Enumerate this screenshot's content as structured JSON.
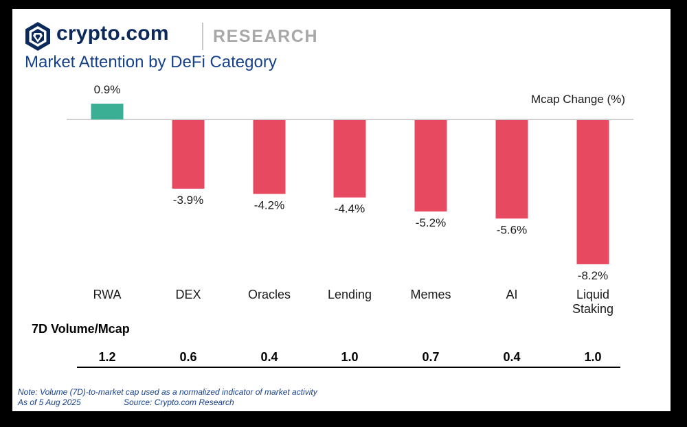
{
  "brand": {
    "name": "crypto.com",
    "division": "RESEARCH",
    "logo_icon": "crypto-com-lion-shield-icon"
  },
  "title": "Market Attention by DeFi Category",
  "chart_data": {
    "type": "bar",
    "categories": [
      "RWA",
      "DEX",
      "Oracles",
      "Lending",
      "Memes",
      "AI",
      "Liquid Staking"
    ],
    "category_labels": [
      [
        "RWA"
      ],
      [
        "DEX"
      ],
      [
        "Oracles"
      ],
      [
        "Lending"
      ],
      [
        "Memes"
      ],
      [
        "AI"
      ],
      [
        "Liquid",
        "Staking"
      ]
    ],
    "values": [
      0.9,
      -3.9,
      -4.2,
      -4.4,
      -5.2,
      -5.6,
      -8.2
    ],
    "value_labels": [
      "0.9%",
      "-3.9%",
      "-4.2%",
      "-4.4%",
      "-5.2%",
      "-5.6%",
      "-8.2%"
    ],
    "ylabel": "Mcap Change (%)",
    "ylim": [
      -8.2,
      0.9
    ],
    "grid": false,
    "colors": {
      "positive": "#3aaf94",
      "negative": "#e64960",
      "baseline": "#c0c0c0"
    },
    "secondary_table": {
      "label": "7D Volume/Mcap",
      "values": [
        "1.2",
        "0.6",
        "0.4",
        "1.0",
        "0.7",
        "0.4",
        "1.0"
      ]
    }
  },
  "notes": {
    "line1": "Note: Volume (7D)-to-market cap used as a normalized indicator of market activity",
    "line2": "As of 5 Aug 2025",
    "source": "Source: Crypto.com Research"
  },
  "colors": {
    "brand_navy": "#0b2a5b",
    "title_blue": "#15408c",
    "frame": "#000000"
  }
}
